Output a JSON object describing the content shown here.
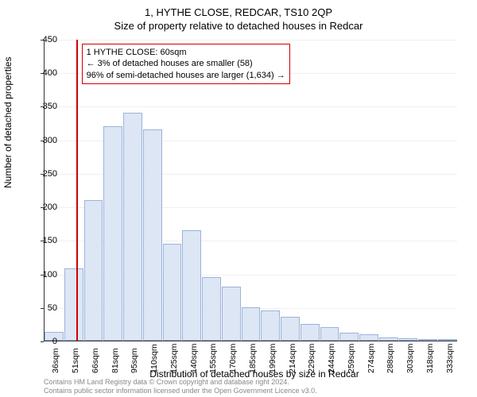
{
  "chart": {
    "type": "histogram",
    "title": "1, HYTHE CLOSE, REDCAR, TS10 2QP",
    "subtitle": "Size of property relative to detached houses in Redcar",
    "ylabel": "Number of detached properties",
    "xlabel": "Distribution of detached houses by size in Redcar",
    "ylim": [
      0,
      450
    ],
    "ytick_step": 50,
    "yticks": [
      0,
      50,
      100,
      150,
      200,
      250,
      300,
      350,
      400,
      450
    ],
    "categories": [
      "36sqm",
      "51sqm",
      "66sqm",
      "81sqm",
      "95sqm",
      "110sqm",
      "125sqm",
      "140sqm",
      "155sqm",
      "170sqm",
      "185sqm",
      "199sqm",
      "214sqm",
      "229sqm",
      "244sqm",
      "259sqm",
      "274sqm",
      "288sqm",
      "303sqm",
      "318sqm",
      "333sqm"
    ],
    "values": [
      13,
      108,
      210,
      320,
      340,
      315,
      145,
      165,
      95,
      80,
      50,
      45,
      35,
      25,
      20,
      12,
      10,
      5,
      3,
      2,
      1
    ],
    "bar_fill": "#dde6f5",
    "bar_border": "#9bb3d9",
    "background_color": "#ffffff",
    "grid_color": "#f0f0f0",
    "marker_x_index": 1.6,
    "marker_color": "#cc0000",
    "annotation": {
      "line1": "1 HYTHE CLOSE: 60sqm",
      "line2": "← 3% of detached houses are smaller (58)",
      "line3": "96% of semi-detached houses are larger (1,634) →"
    },
    "title_fontsize": 13,
    "label_fontsize": 12,
    "tick_fontsize": 11
  },
  "footer": {
    "line1": "Contains HM Land Registry data © Crown copyright and database right 2024.",
    "line2": "Contains public sector information licensed under the Open Government Licence v3.0."
  }
}
